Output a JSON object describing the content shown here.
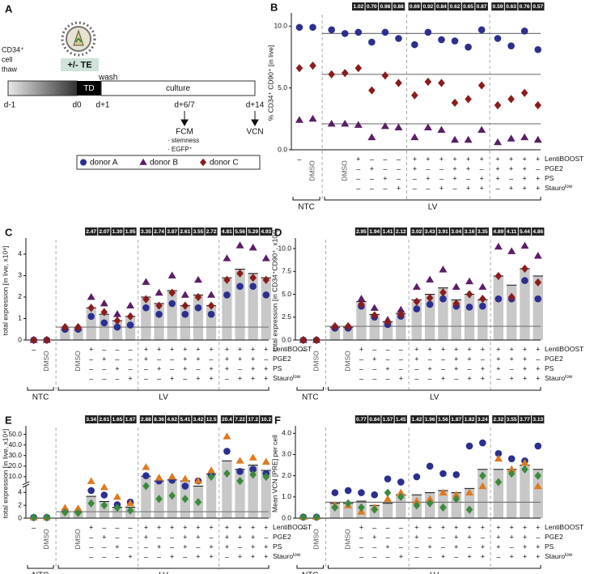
{
  "diagram": {
    "panel": "A",
    "thaw": [
      "CD34⁺",
      "cell",
      "thaw"
    ],
    "te": "+/- TE",
    "wash": "wash",
    "td": "TD",
    "culture": "culture",
    "days": [
      "d-1",
      "d0",
      "d+1",
      "d+6/7",
      "d+14"
    ],
    "fcm": "FCM",
    "fcm_items": [
      "· stemness",
      "· EGFP⁺"
    ],
    "vcn": "VCN",
    "legend": [
      {
        "name": "donor A",
        "color": "#2b2f8f",
        "marker": "circle"
      },
      {
        "name": "donor B",
        "color": "#5a1e66",
        "marker": "triangle"
      },
      {
        "name": "donor C",
        "color": "#8b1c1c",
        "marker": "diamond"
      }
    ]
  },
  "conditions": {
    "rows": [
      {
        "label": "LentiBOOST",
        "cells": [
          "–",
          "DMSO",
          null,
          "DMSO",
          "+",
          "–",
          "–",
          "–",
          "+",
          "+",
          "+",
          "+",
          "+",
          "+",
          "+",
          "+",
          "+",
          "+"
        ]
      },
      {
        "label": "PGE2",
        "cells": [
          null,
          null,
          null,
          null,
          "–",
          "+",
          "–",
          "–",
          "+",
          "–",
          "–",
          "+",
          "+",
          "–",
          "+",
          "+",
          "+",
          "–"
        ]
      },
      {
        "label": "PS",
        "cells": [
          null,
          null,
          null,
          null,
          "–",
          "–",
          "+",
          "–",
          "–",
          "+",
          "–",
          "+",
          "–",
          "+",
          "+",
          "–",
          "+",
          "+"
        ]
      },
      {
        "label": "Stauro",
        "sup": "low",
        "cells": [
          null,
          null,
          null,
          null,
          "–",
          "–",
          "–",
          "+",
          "–",
          "–",
          "+",
          "–",
          "+",
          "+",
          "–",
          "+",
          "+",
          "+"
        ]
      }
    ],
    "groups": [
      "NTC",
      "LV"
    ]
  },
  "chart_data": [
    {
      "type": "dot",
      "panel": "B",
      "ylabel": "% CD34⁺ CD90⁺ [in live]",
      "ylim": [
        0,
        10.8
      ],
      "yticks": [
        {
          "value": 0,
          "label": "0.0"
        },
        {
          "value": 5,
          "label": "5.0"
        },
        {
          "value": 10,
          "label": "10.0"
        }
      ],
      "fold_labels": [
        "1.02",
        "0.70",
        "0.98",
        "0.88",
        "0.69",
        "0.92",
        "0.84",
        "0.62",
        "0.65",
        "0.87",
        "0.59",
        "0.63",
        "0.76",
        "0.57"
      ],
      "series": [
        {
          "color": "#2b2f8f",
          "marker": "circle",
          "reference": 9.4,
          "values": [
            9.9,
            9.9,
            9.7,
            9.4,
            9.5,
            8.7,
            9.5,
            9.0,
            8.5,
            9.5,
            8.9,
            8.8,
            8.3,
            9.7,
            9.0,
            8.4,
            9.6,
            8.1
          ]
        },
        {
          "color": "#5a1e66",
          "marker": "triangle",
          "reference": 2.1,
          "values": [
            2.4,
            2.5,
            2.1,
            2.1,
            2.0,
            1.0,
            1.9,
            1.8,
            1.0,
            1.8,
            1.6,
            0.8,
            0.8,
            1.6,
            0.6,
            0.9,
            1.0,
            0.8
          ]
        },
        {
          "color": "#8b1c1c",
          "marker": "diamond",
          "reference": 6.1,
          "values": [
            6.6,
            6.8,
            6.1,
            6.2,
            6.6,
            4.8,
            6.0,
            5.4,
            4.4,
            5.5,
            5.4,
            3.8,
            4.1,
            5.2,
            3.6,
            4.1,
            4.6,
            3.6
          ]
        }
      ]
    },
    {
      "type": "bar",
      "panel": "C",
      "ylabel": "total expression [in live, x10⁴]",
      "ylim": [
        0,
        4.6
      ],
      "yticks": [
        0,
        1,
        2,
        3,
        4
      ],
      "reference": 0.6,
      "color": "#c8c8c8",
      "values": [
        0,
        0,
        0.6,
        0.6,
        1.5,
        1.2,
        0.9,
        1.1,
        2.0,
        1.7,
        2.3,
        1.6,
        2.1,
        1.6,
        2.9,
        3.3,
        3.1,
        2.9
      ],
      "fold_labels": [
        "2.47",
        "2.07",
        "1.30",
        "1.95",
        "3.35",
        "2.74",
        "3.87",
        "2.61",
        "3.55",
        "2.72",
        "4.81",
        "5.56",
        "5.29",
        "4.93"
      ],
      "series": [
        {
          "color": "#2b2f8f",
          "marker": "circle",
          "values": [
            0,
            0,
            0.5,
            0.5,
            1.1,
            0.8,
            0.6,
            0.7,
            1.5,
            1.2,
            1.7,
            1.2,
            1.5,
            1.2,
            2.1,
            2.5,
            2.5,
            2.1
          ]
        },
        {
          "color": "#5a1e66",
          "marker": "triangle",
          "values": [
            0,
            0,
            0.6,
            0.6,
            2.0,
            1.7,
            1.2,
            1.6,
            2.7,
            2.2,
            3.0,
            2.1,
            2.8,
            2.1,
            3.8,
            4.4,
            4.3,
            3.8
          ]
        },
        {
          "color": "#8b1c1c",
          "marker": "diamond",
          "values": [
            0,
            0,
            0.6,
            0.6,
            1.5,
            1.3,
            0.9,
            1.1,
            1.9,
            1.6,
            2.2,
            1.6,
            2.0,
            1.6,
            2.8,
            3.1,
            2.9,
            2.8
          ]
        }
      ]
    },
    {
      "type": "bar",
      "panel": "D",
      "ylabel": "total expression [in CD34⁺CD90⁺, x10⁴]",
      "ylim": [
        0,
        10.8
      ],
      "yticks": [
        {
          "value": 0,
          "label": "0.0"
        },
        2.5,
        {
          "value": 5,
          "label": "5.0"
        },
        7.5,
        {
          "value": 10,
          "label": "10.0"
        }
      ],
      "reference": 1.5,
      "color": "#c8c8c8",
      "values": [
        0,
        0,
        1.4,
        1.4,
        4.2,
        2.8,
        2.0,
        2.9,
        4.4,
        5.0,
        5.7,
        4.4,
        5.0,
        4.4,
        7.0,
        6.0,
        7.8,
        7.0
      ],
      "fold_labels": [
        "2.95",
        "1.94",
        "1.41",
        "2.12",
        "3.02",
        "3.43",
        "3.91",
        "3.04",
        "3.16",
        "3.35",
        "4.89",
        "4.11",
        "5.44",
        "4.86"
      ],
      "series": [
        {
          "color": "#2b2f8f",
          "marker": "circle",
          "values": [
            0,
            0,
            1.3,
            1.3,
            3.7,
            2.5,
            1.7,
            2.6,
            3.4,
            3.9,
            4.5,
            3.7,
            3.6,
            3.7,
            4.5,
            4.5,
            6.5,
            4.5
          ]
        },
        {
          "color": "#5a1e66",
          "marker": "triangle",
          "values": [
            0,
            0,
            1.5,
            1.5,
            4.5,
            3.5,
            2.2,
            3.3,
            5.8,
            6.6,
            7.7,
            5.8,
            6.4,
            5.8,
            10.2,
            9.7,
            10.3,
            9.2
          ]
        },
        {
          "color": "#8b1c1c",
          "marker": "diamond",
          "values": [
            0,
            0,
            1.5,
            1.5,
            3.9,
            2.7,
            2.0,
            2.8,
            4.2,
            4.6,
            5.2,
            4.0,
            5.0,
            4.5,
            7.0,
            4.7,
            7.8,
            6.3
          ]
        }
      ]
    },
    {
      "type": "bar",
      "panel": "E",
      "ylabel": "total expression [in live, x10⁴]",
      "ylim": [
        0,
        55
      ],
      "ybreak": 5,
      "yticks": [
        0,
        2,
        4,
        {
          "value": 10,
          "label": "10.0"
        },
        {
          "value": 20,
          "label": "20.0"
        },
        {
          "value": 30,
          "label": "30.0"
        },
        {
          "value": 40,
          "label": "40.0"
        },
        {
          "value": 50,
          "label": "50.0"
        }
      ],
      "reference": 1.0,
      "color": "#c8c8c8",
      "values": [
        0,
        0,
        1.0,
        1.0,
        3.4,
        2.6,
        1.7,
        1.7,
        10.5,
        6.0,
        7.0,
        6.0,
        5.0,
        12.5,
        25.0,
        17.0,
        21.0,
        16.0
      ],
      "fold_labels": [
        "3.34",
        "2.61",
        "1.65",
        "1.67",
        "2.88",
        "8.36",
        "4.62",
        "5.41",
        "3.42",
        "12.5",
        "20.4",
        "7.22",
        "17.2",
        "10.2"
      ],
      "series": [
        {
          "color": "#2b2f8f",
          "marker": "circle",
          "values": [
            0.1,
            0.1,
            1.2,
            1.1,
            4.3,
            3.6,
            2.1,
            2.5,
            11,
            6,
            6.7,
            5,
            6,
            12,
            34,
            15,
            17,
            13
          ]
        },
        {
          "color": "#e07a1f",
          "marker": "triangle",
          "values": [
            0.1,
            0.1,
            1.6,
            1.5,
            5.7,
            4.8,
            3.3,
            2.3,
            19,
            9,
            10,
            8,
            6,
            16,
            48,
            25,
            28,
            24
          ]
        },
        {
          "color": "#3b8a3b",
          "marker": "diamond",
          "values": [
            0.1,
            0.1,
            0.9,
            0.8,
            2.3,
            2.0,
            1.6,
            1.2,
            5,
            3,
            3.5,
            3,
            2.5,
            10,
            13,
            6,
            12,
            10
          ]
        }
      ]
    },
    {
      "type": "bar",
      "panel": "F",
      "ylabel": "Mean VCN [PRE] per cell",
      "ylim": [
        0,
        4.2
      ],
      "yticks": [
        {
          "value": 0,
          "label": "0.0"
        },
        {
          "value": 1,
          "label": "1.0"
        },
        {
          "value": 2,
          "label": "2.0"
        },
        {
          "value": 3,
          "label": "3.0"
        },
        {
          "value": 4,
          "label": "4.0"
        }
      ],
      "reference": 0.75,
      "color": "#c8c8c8",
      "values": [
        0,
        0,
        0.7,
        0.7,
        0.8,
        0.6,
        0.7,
        1.1,
        1.1,
        1.2,
        1.3,
        1.2,
        1.4,
        2.3,
        2.3,
        2.3,
        2.5,
        2.3
      ],
      "fold_labels": [
        "0.77",
        "0.84",
        "1.57",
        "1.45",
        "1.42",
        "1.96",
        "1.56",
        "1.87",
        "1.82",
        "3.24",
        "2.32",
        "3.55",
        "3.77",
        "3.13"
      ],
      "series": [
        {
          "color": "#2b2f8f",
          "marker": "circle",
          "values": [
            0.05,
            0.05,
            1.2,
            1.3,
            1.2,
            1.1,
            1.85,
            1.7,
            1.95,
            2.45,
            2.1,
            2.05,
            3.4,
            3.55,
            3.05,
            2.8,
            2.7,
            3.4
          ]
        },
        {
          "color": "#e07a1f",
          "marker": "triangle",
          "values": [
            0.05,
            0.05,
            0.6,
            0.6,
            0.3,
            0.5,
            0.9,
            1.2,
            0.8,
            0.9,
            1.2,
            1.1,
            1.2,
            1.5,
            2.8,
            2.3,
            2.6,
            1.5
          ]
        },
        {
          "color": "#3b8a3b",
          "marker": "diamond",
          "values": [
            0.05,
            0.05,
            0.5,
            0.7,
            0.5,
            0.4,
            1.2,
            1.0,
            0.6,
            0.7,
            0.5,
            0.9,
            0.4,
            2.0,
            1.7,
            2.1,
            2.3,
            2.0
          ]
        }
      ]
    }
  ]
}
